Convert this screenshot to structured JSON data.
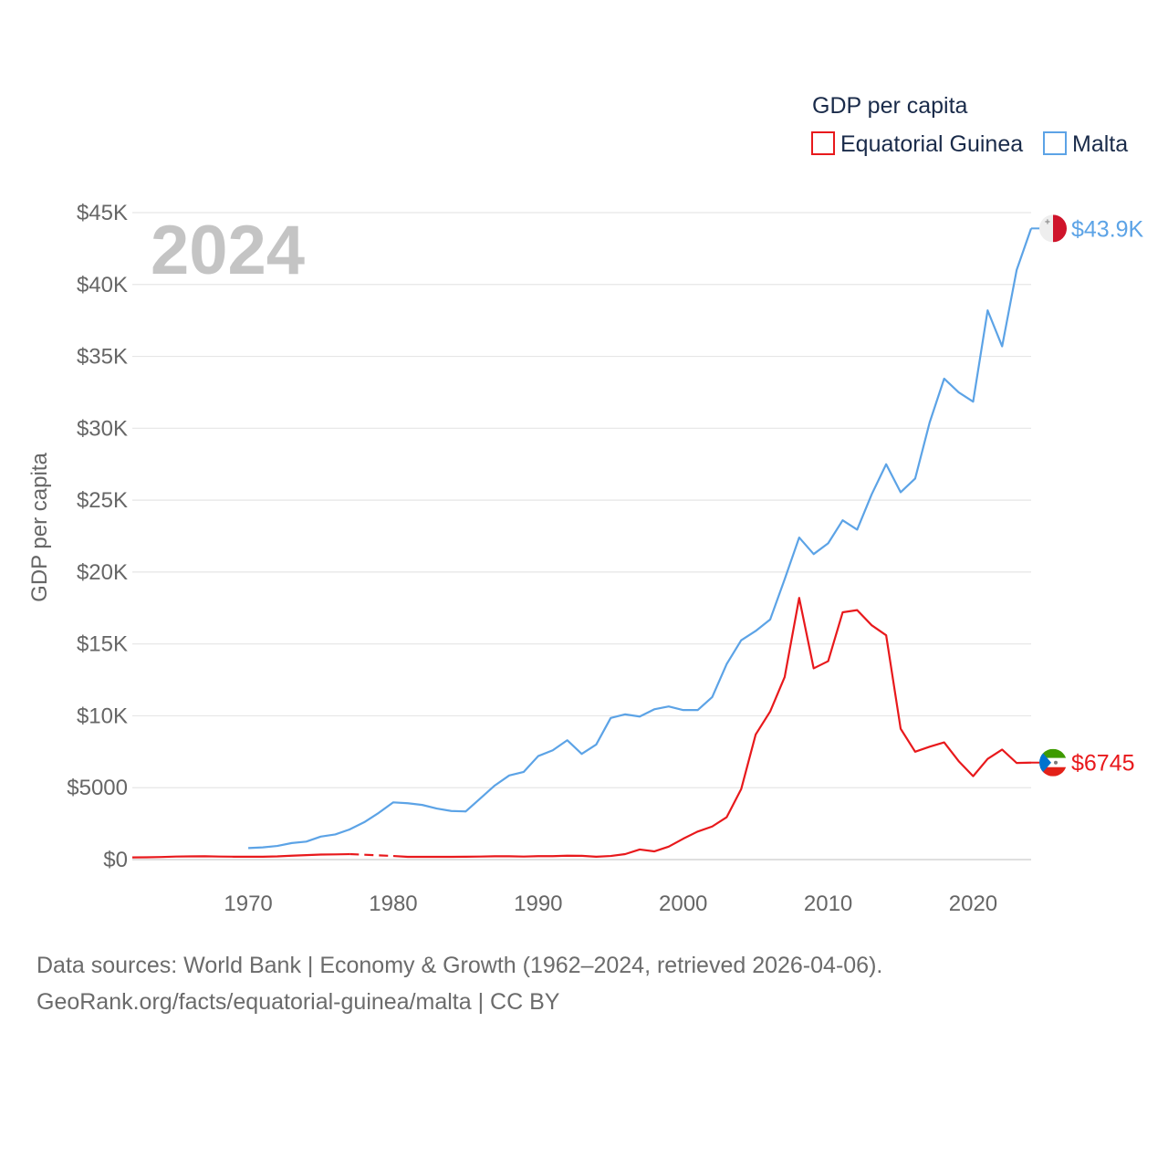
{
  "year_display": "2024",
  "footer": {
    "line1": "Data sources: World Bank | Economy & Growth (1962–2024, retrieved 2026-04-06).",
    "line2": "GeoRank.org/facts/equatorial-guinea/malta | CC BY"
  },
  "chart_data": {
    "type": "line",
    "title": "GDP per capita",
    "xlabel": "",
    "ylabel": "GDP per capita",
    "xlim": [
      1962,
      2024
    ],
    "ylim": [
      0,
      45000
    ],
    "x_ticks": [
      {
        "value": 1970,
        "label": "1970"
      },
      {
        "value": 1980,
        "label": "1980"
      },
      {
        "value": 1990,
        "label": "1990"
      },
      {
        "value": 2000,
        "label": "2000"
      },
      {
        "value": 2010,
        "label": "2010"
      },
      {
        "value": 2020,
        "label": "2020"
      }
    ],
    "y_ticks": [
      {
        "value": 0,
        "label": "$0"
      },
      {
        "value": 5000,
        "label": "$5000"
      },
      {
        "value": 10000,
        "label": "$10K"
      },
      {
        "value": 15000,
        "label": "$15K"
      },
      {
        "value": 20000,
        "label": "$20K"
      },
      {
        "value": 25000,
        "label": "$25K"
      },
      {
        "value": 30000,
        "label": "$30K"
      },
      {
        "value": 35000,
        "label": "$35K"
      },
      {
        "value": 40000,
        "label": "$40K"
      },
      {
        "value": 45000,
        "label": "$45K"
      }
    ],
    "grid": true,
    "legend": {
      "title": "GDP per capita",
      "position": "top-right"
    },
    "series": [
      {
        "name": "Equatorial Guinea",
        "color": "#e8191c",
        "flag": "equatorial-guinea-flag-icon",
        "end_label": "$6745",
        "x": [
          1962,
          1963,
          1964,
          1965,
          1966,
          1967,
          1968,
          1969,
          1970,
          1971,
          1972,
          1973,
          1974,
          1975,
          1976,
          1977,
          1978,
          1979,
          1980,
          1981,
          1982,
          1983,
          1984,
          1985,
          1986,
          1987,
          1988,
          1989,
          1990,
          1991,
          1992,
          1993,
          1994,
          1995,
          1996,
          1997,
          1998,
          1999,
          2000,
          2001,
          2002,
          2003,
          2004,
          2005,
          2006,
          2007,
          2008,
          2009,
          2010,
          2011,
          2012,
          2013,
          2014,
          2015,
          2016,
          2017,
          2018,
          2019,
          2020,
          2021,
          2022,
          2023,
          2024
        ],
        "values": [
          150,
          160,
          180,
          210,
          220,
          230,
          210,
          200,
          200,
          200,
          220,
          270,
          310,
          350,
          360,
          380,
          null,
          null,
          250,
          190,
          190,
          190,
          190,
          200,
          210,
          230,
          230,
          210,
          240,
          240,
          270,
          260,
          200,
          250,
          380,
          700,
          570,
          900,
          1450,
          1950,
          2300,
          2950,
          4900,
          8700,
          10300,
          12700,
          18200,
          13300,
          13800,
          17200,
          17350,
          16300,
          15600,
          9100,
          7500,
          7850,
          8150,
          6850,
          5800,
          7000,
          7650,
          6720,
          6745
        ],
        "gap": {
          "from": 1977,
          "to": 1980
        }
      },
      {
        "name": "Malta",
        "color": "#5ca3e6",
        "flag": "malta-flag-icon",
        "end_label": "$43.9K",
        "x": [
          1970,
          1971,
          1972,
          1973,
          1974,
          1975,
          1976,
          1977,
          1978,
          1979,
          1980,
          1981,
          1982,
          1983,
          1984,
          1985,
          1986,
          1987,
          1988,
          1989,
          1990,
          1991,
          1992,
          1993,
          1994,
          1995,
          1996,
          1997,
          1998,
          1999,
          2000,
          2001,
          2002,
          2003,
          2004,
          2005,
          2006,
          2007,
          2008,
          2009,
          2010,
          2011,
          2012,
          2013,
          2014,
          2015,
          2016,
          2017,
          2018,
          2019,
          2020,
          2021,
          2022,
          2023,
          2024
        ],
        "values": [
          800,
          850,
          950,
          1150,
          1250,
          1600,
          1750,
          2100,
          2600,
          3250,
          3980,
          3920,
          3800,
          3550,
          3380,
          3350,
          4250,
          5150,
          5850,
          6100,
          7200,
          7600,
          8300,
          7350,
          8000,
          9850,
          10100,
          9950,
          10450,
          10650,
          10400,
          10400,
          11300,
          13600,
          15250,
          15900,
          16700,
          19500,
          22400,
          21250,
          22000,
          23600,
          22950,
          25400,
          27500,
          25550,
          26500,
          30400,
          33450,
          32500,
          31850,
          38200,
          35700,
          41000,
          43900
        ]
      }
    ]
  }
}
